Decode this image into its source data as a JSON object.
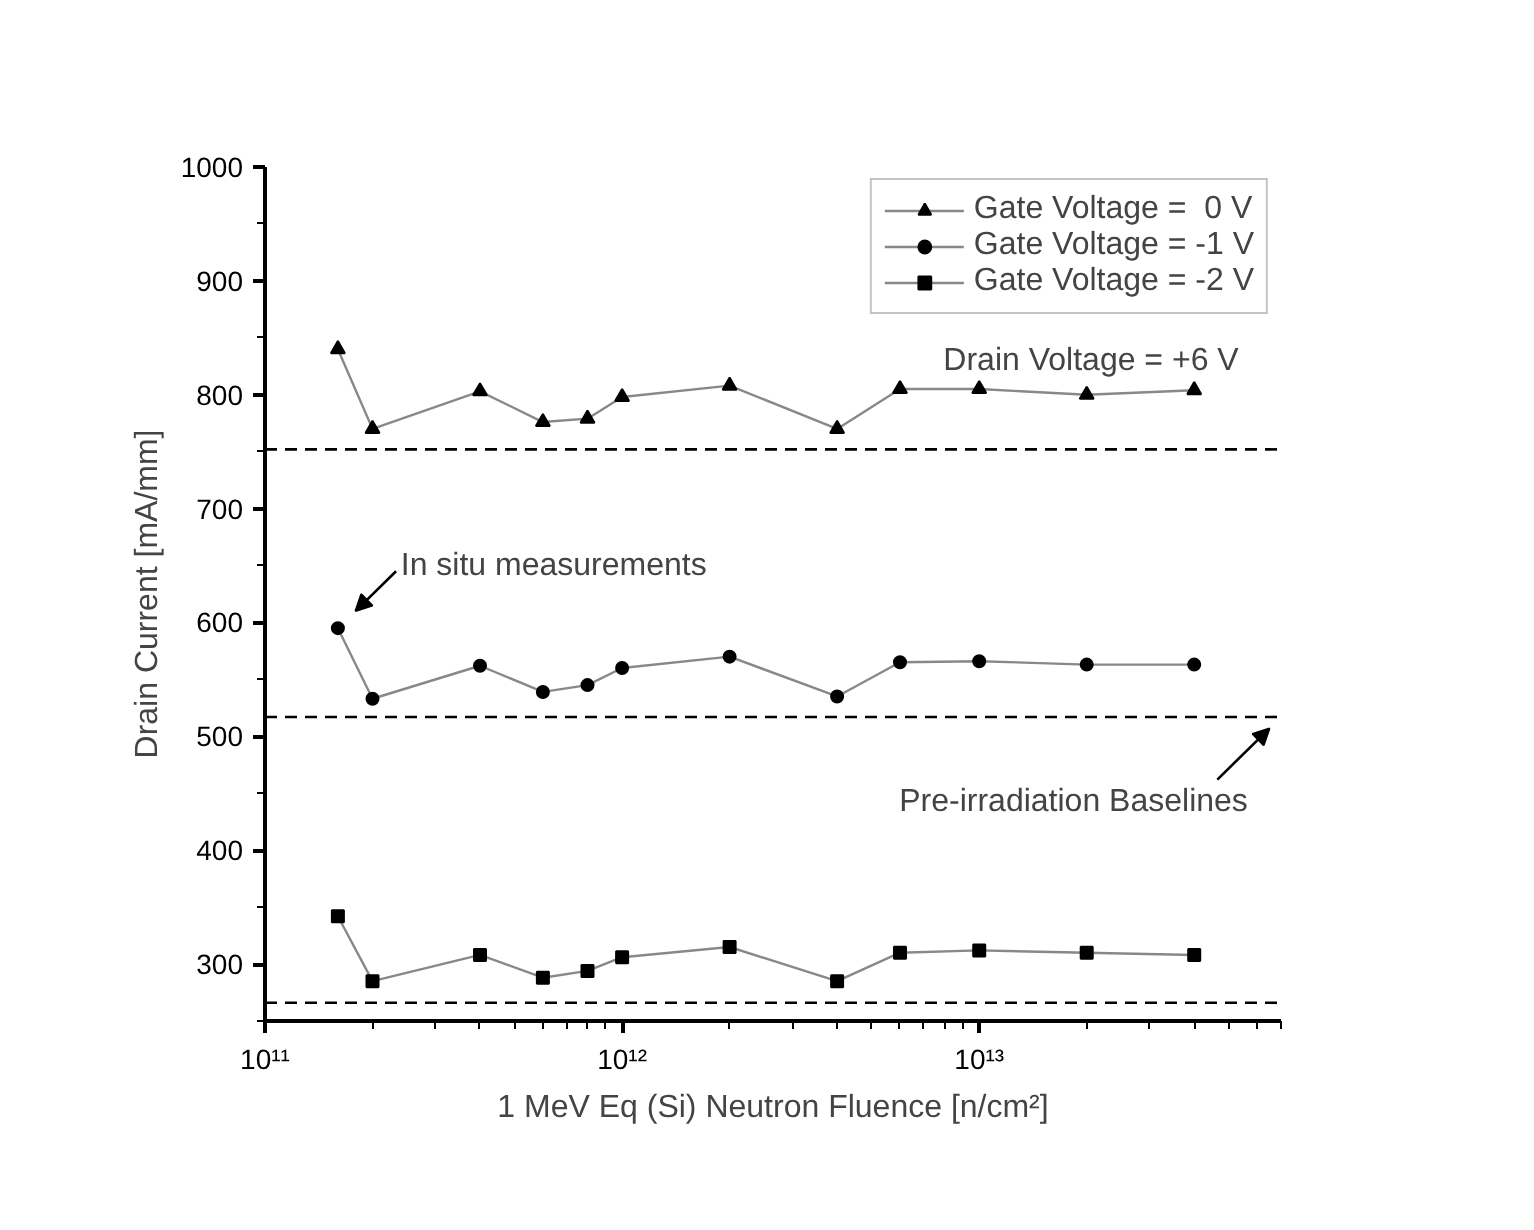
{
  "chart_data": {
    "type": "line",
    "xlabel": "1 MeV Eq (Si) Neutron Fluence [n/cm²]",
    "ylabel": "Drain Current [mA/mm]",
    "x": [
      160000000000.0,
      200000000000.0,
      400000000000.0,
      600000000000.0,
      800000000000.0,
      1000000000000.0,
      2000000000000.0,
      4000000000000.0,
      6000000000000.0,
      10000000000000.0,
      20000000000000.0,
      40000000000000.0
    ],
    "series": [
      {
        "name": "Gate Voltage =  0 V",
        "color": "#000000",
        "marker": "triangle",
        "values": [
          840,
          770,
          803,
          776,
          779,
          798,
          808,
          770,
          805,
          805,
          800,
          804
        ]
      },
      {
        "name": "Gate Voltage = -1 V",
        "color": "#000000",
        "marker": "circle",
        "values": [
          595,
          533,
          562,
          539,
          545,
          560,
          570,
          535,
          565,
          566,
          563,
          563
        ]
      },
      {
        "name": "Gate Voltage = -2 V",
        "color": "#000000",
        "marker": "square",
        "values": [
          342,
          285,
          308,
          288,
          294,
          306,
          315,
          285,
          310,
          312,
          310,
          308
        ]
      }
    ],
    "log": "x",
    "xlim": [
      100000000000.0,
      70000000000000.0
    ],
    "xticks": [
      {
        "value": 100000000000.0,
        "label": "10¹¹"
      },
      {
        "value": 1000000000000.0,
        "label": "10¹²"
      },
      {
        "value": 10000000000000.0,
        "label": "10¹³"
      }
    ],
    "ylim": [
      250,
      1000
    ],
    "yticks": [
      300,
      400,
      500,
      600,
      700,
      800,
      900,
      1000
    ],
    "ref_lines": [
      {
        "axis": "y",
        "value": 752,
        "line_style": "dashed",
        "color": "#000000"
      },
      {
        "axis": "y",
        "value": 517,
        "line_style": "dashed",
        "color": "#000000"
      },
      {
        "axis": "y",
        "value": 266,
        "line_style": "dashed",
        "color": "#000000"
      }
    ],
    "annotations": [
      "Drain Voltage = +6 V",
      {
        "text": "In situ measurements",
        "x": 160000000000.0,
        "y": 595
      },
      {
        "text": "Pre-irradiation Baselines",
        "x": 65000000000000.0,
        "y": 517
      }
    ],
    "grid": false,
    "legend": "top right",
    "line_style": "solid"
  }
}
